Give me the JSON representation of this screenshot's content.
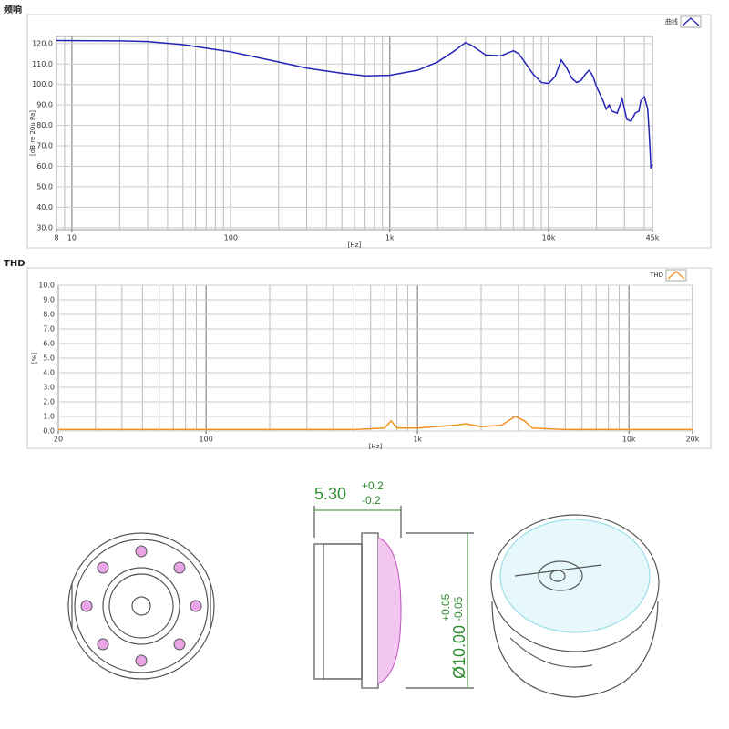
{
  "chart_data": [
    {
      "type": "line",
      "title": "频响",
      "y_label": "[dB re 20u Pa]",
      "x_label": "[Hz]",
      "log_x": true,
      "grid": true,
      "legend": "upper right",
      "xlim": [
        8,
        45000
      ],
      "xticks": [
        8,
        10,
        100,
        {
          "value": 1000,
          "label": "1k"
        },
        {
          "value": 10000,
          "label": "10k"
        },
        {
          "value": 45000,
          "label": "45k"
        }
      ],
      "ylim": [
        29,
        123.5
      ],
      "yticks": [
        {
          "value": 30,
          "label": "30.0"
        },
        {
          "value": 40,
          "label": "40.0"
        },
        {
          "value": 50,
          "label": "50.0"
        },
        {
          "value": 60,
          "label": "60.0"
        },
        {
          "value": 70,
          "label": "70.0"
        },
        {
          "value": 80,
          "label": "80.0"
        },
        {
          "value": 90,
          "label": "90.0"
        },
        {
          "value": 100,
          "label": "100.0"
        },
        {
          "value": 110,
          "label": "110.0"
        },
        {
          "value": 120,
          "label": "120.0"
        }
      ],
      "x": [
        8,
        20,
        30,
        50,
        100,
        200,
        300,
        500,
        700,
        1000,
        1500,
        2000,
        2500,
        3000,
        3300,
        4000,
        5000,
        6000,
        6500,
        8000,
        9000,
        10000,
        11000,
        12000,
        13000,
        14000,
        15000,
        16000,
        17000,
        18000,
        19000,
        20000,
        22000,
        23000,
        24000,
        25000,
        27000,
        29000,
        30000,
        31000,
        33000,
        35000,
        37000,
        38000,
        40000,
        42000,
        43000,
        44000,
        45000
      ],
      "series": [
        {
          "name": "曲线",
          "color": "#2323b8",
          "values": [
            121.5,
            121.3,
            121,
            119.5,
            116,
            111,
            108,
            105.5,
            104.2,
            104.5,
            107,
            111,
            116,
            120.5,
            119,
            114.5,
            114,
            116.5,
            115,
            105,
            101,
            100.5,
            104,
            112,
            108,
            103,
            101,
            102,
            105,
            107,
            104,
            99,
            92,
            88,
            90,
            87,
            86,
            93,
            88,
            83,
            82,
            86,
            87,
            92,
            94,
            88,
            75,
            59,
            61
          ]
        }
      ]
    },
    {
      "type": "line",
      "title": "THD",
      "y_label": "[%]",
      "x_label": "[Hz]",
      "log_x": true,
      "grid": true,
      "legend": "upper right",
      "xlim": [
        20,
        20000
      ],
      "xticks": [
        20,
        100,
        {
          "value": 1000,
          "label": "1k"
        },
        {
          "value": 10000,
          "label": "10k"
        },
        {
          "value": 20000,
          "label": "20k"
        }
      ],
      "ylim": [
        0,
        10
      ],
      "yticks": [
        {
          "value": 0,
          "label": "0.0"
        },
        {
          "value": 1,
          "label": "1.0"
        },
        {
          "value": 2,
          "label": "2.0"
        },
        {
          "value": 3,
          "label": "3.0"
        },
        {
          "value": 4,
          "label": "4.0"
        },
        {
          "value": 5,
          "label": "5.0"
        },
        {
          "value": 6,
          "label": "6.0"
        },
        {
          "value": 7,
          "label": "7.0"
        },
        {
          "value": 8,
          "label": "8.0"
        },
        {
          "value": 9,
          "label": "9.0"
        },
        {
          "value": 10,
          "label": "10.0"
        }
      ],
      "x": [
        20,
        50,
        100,
        200,
        500,
        700,
        750,
        800,
        1000,
        1500,
        1700,
        2000,
        2500,
        2900,
        3200,
        3500,
        5000,
        10000,
        20000
      ],
      "series": [
        {
          "name": "THD",
          "color": "#f0901e",
          "values": [
            0.1,
            0.1,
            0.1,
            0.1,
            0.1,
            0.2,
            0.7,
            0.2,
            0.2,
            0.4,
            0.5,
            0.3,
            0.4,
            1.0,
            0.7,
            0.2,
            0.1,
            0.1,
            0.1
          ]
        }
      ]
    }
  ],
  "drawing": {
    "height": "5.30",
    "height_plus": "+0.2",
    "height_minus": "-0.2",
    "diameter": "Ø10.00",
    "diameter_plus": "+0.05",
    "diameter_minus": "-0.05"
  }
}
